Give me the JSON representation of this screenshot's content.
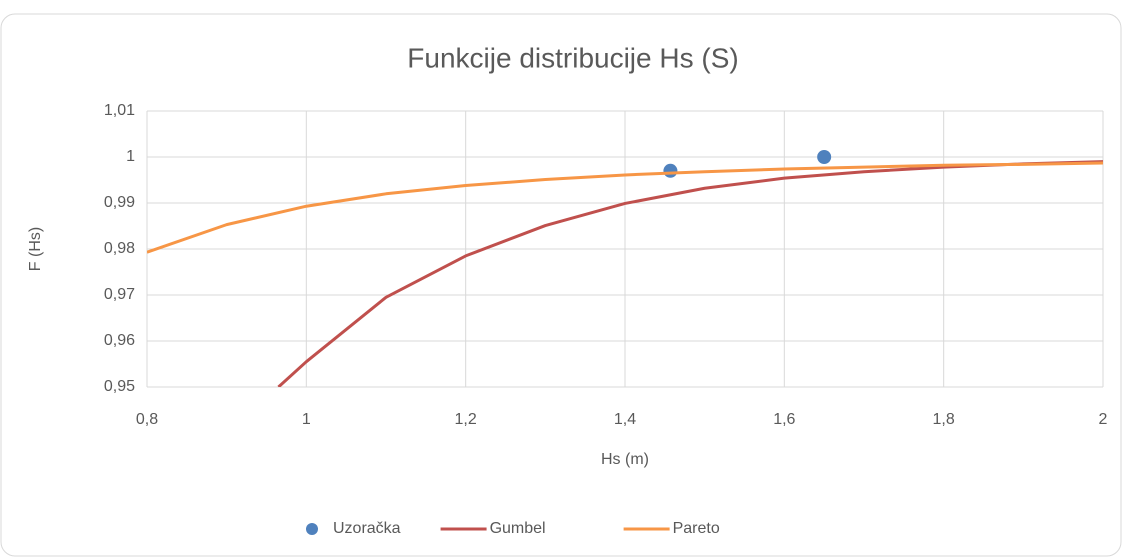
{
  "chart_data": {
    "type": "scatter",
    "title": "Funkcije distribucije Hs (S)",
    "xlabel": "Hs (m)",
    "ylabel": "F (Hs)",
    "xlim": [
      0.8,
      2
    ],
    "ylim": [
      0.95,
      1.01
    ],
    "xticks": [
      {
        "value": 0.8,
        "label": "0,8"
      },
      1,
      {
        "value": 1.2,
        "label": "1,2"
      },
      {
        "value": 1.4,
        "label": "1,4"
      },
      {
        "value": 1.6,
        "label": "1,6"
      },
      {
        "value": 1.8,
        "label": "1,8"
      },
      2
    ],
    "yticks": [
      {
        "value": 0.95,
        "label": "0,95"
      },
      {
        "value": 0.96,
        "label": "0,96"
      },
      {
        "value": 0.97,
        "label": "0,97"
      },
      {
        "value": 0.98,
        "label": "0,98"
      },
      {
        "value": 0.99,
        "label": "0,99"
      },
      1,
      {
        "value": 1.01,
        "label": "1,01"
      }
    ],
    "grid": true,
    "legend": "bottom",
    "series": [
      {
        "name": "Uzoračka",
        "color": "#4f81bd",
        "style": "markers",
        "x": [
          1.457,
          1.65
        ],
        "values": [
          0.997,
          1.0
        ]
      },
      {
        "name": "Gumbel",
        "color": "#c0504d",
        "style": "line",
        "x": [
          0.965,
          1.0,
          1.1,
          1.2,
          1.3,
          1.4,
          1.5,
          1.6,
          1.7,
          1.8,
          1.9,
          2.0
        ],
        "values": [
          0.95,
          0.9555,
          0.9695,
          0.9785,
          0.9851,
          0.9899,
          0.9932,
          0.9954,
          0.9968,
          0.9978,
          0.9985,
          0.999
        ]
      },
      {
        "name": "Pareto",
        "color": "#f79646",
        "style": "line",
        "x": [
          0.8,
          0.9,
          1.0,
          1.1,
          1.2,
          1.3,
          1.4,
          1.5,
          1.6,
          1.7,
          1.8,
          1.9,
          2.0
        ],
        "values": [
          0.9793,
          0.9853,
          0.9893,
          0.992,
          0.9938,
          0.9951,
          0.9961,
          0.9968,
          0.9974,
          0.9978,
          0.9982,
          0.9984,
          0.9987
        ]
      }
    ]
  }
}
